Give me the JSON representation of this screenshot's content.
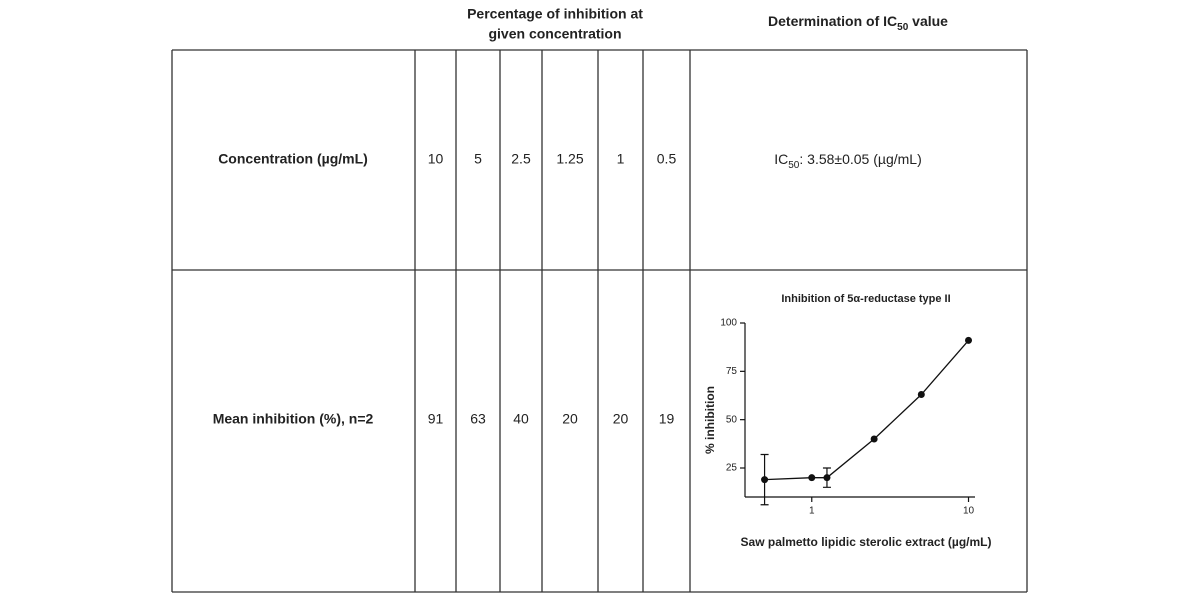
{
  "table": {
    "columns_header": {
      "lines": [
        "Percentage of inhibition at",
        "given concentration"
      ]
    },
    "result_header": {
      "parts": [
        "Determination of IC",
        "50",
        " value"
      ]
    },
    "rows": [
      {
        "label": "Concentration (µg/mL)",
        "cells": [
          "10",
          "5",
          "2.5",
          "1.25",
          "1",
          "0.5"
        ],
        "result": {
          "parts": [
            "IC",
            "50",
            ": 3.58±0.05 (µg/mL)"
          ]
        }
      },
      {
        "label": "Mean inhibition (%), n=2",
        "cells": [
          "91",
          "63",
          "40",
          "20",
          "20",
          "19"
        ]
      }
    ]
  },
  "chart_data": {
    "type": "line",
    "title": "Inhibition of 5α-reductase type II",
    "x_label": "Saw palmetto lipidic sterolic extract (µg/mL)",
    "y_label": "% inhibition",
    "x": [
      10,
      5,
      2.5,
      1.25,
      1,
      0.5
    ],
    "values": [
      91,
      63,
      40,
      20,
      20,
      19
    ],
    "errors": [
      null,
      null,
      null,
      5,
      null,
      13
    ],
    "x_scale": "log",
    "xlim": [
      0.375,
      11
    ],
    "xticks": [
      1,
      10
    ],
    "ylim": [
      10,
      100
    ],
    "yticks": [
      25,
      50,
      75,
      100
    ],
    "color": "#111"
  }
}
